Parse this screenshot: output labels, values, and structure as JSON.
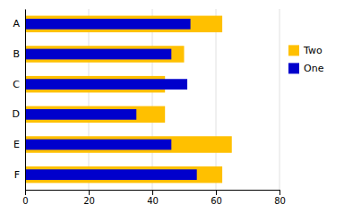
{
  "chart_data": {
    "type": "bar",
    "orientation": "horizontal",
    "categories": [
      "A",
      "B",
      "C",
      "D",
      "E",
      "F"
    ],
    "series": [
      {
        "name": "Two",
        "color": "#FFC000",
        "values": [
          62,
          50,
          44,
          44,
          65,
          62
        ]
      },
      {
        "name": "One",
        "color": "#0000CC",
        "values": [
          52,
          46,
          51,
          35,
          46,
          54
        ]
      }
    ],
    "xlim": [
      0,
      80
    ],
    "xticks": [
      0,
      20,
      40,
      60,
      80
    ],
    "grid": true,
    "legend": "right"
  }
}
